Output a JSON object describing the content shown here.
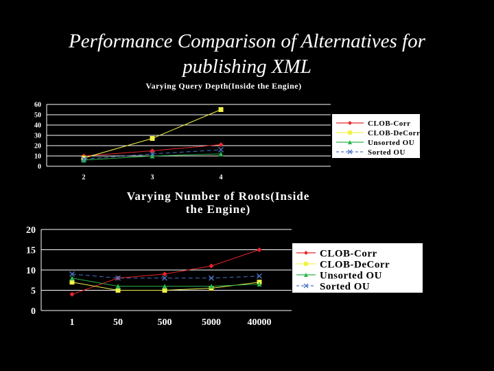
{
  "slide": {
    "title_line1": "Performance Comparison of Alternatives for",
    "title_line2": "publishing XML"
  },
  "colors": {
    "background": "#000000",
    "text": "#ffffff",
    "grid": "#ffffff",
    "legend_bg": "#ffffff",
    "clob_corr": "#e8262a",
    "clob_decorr": "#f2f24a",
    "unsorted_ou": "#2bb54a",
    "sorted_ou": "#4a74c4"
  },
  "chart_data": [
    {
      "type": "line",
      "title": "Varying Query Depth(Inside the Engine)",
      "x": [
        "2",
        "3",
        "4"
      ],
      "ylim": [
        0,
        60
      ],
      "yticks": [
        0,
        10,
        20,
        30,
        40,
        50,
        60
      ],
      "grid": true,
      "legend_position": "right",
      "series": [
        {
          "name": "CLOB-Corr",
          "color": "#e8262a",
          "marker": "diamond",
          "dash": "",
          "values": [
            10,
            15,
            21
          ]
        },
        {
          "name": "CLOB-DeCorr",
          "color": "#f2f24a",
          "marker": "square",
          "dash": "",
          "values": [
            8,
            27,
            55
          ]
        },
        {
          "name": "Unsorted OU",
          "color": "#2bb54a",
          "marker": "triangle",
          "dash": "",
          "values": [
            6,
            10,
            12
          ]
        },
        {
          "name": "Sorted OU",
          "color": "#4a74c4",
          "marker": "x",
          "dash": "6,4",
          "values": [
            7,
            12,
            16
          ]
        }
      ]
    },
    {
      "type": "line",
      "title": "Varying Number of Roots(Inside the Engine)",
      "x": [
        "1",
        "50",
        "500",
        "5000",
        "40000"
      ],
      "ylim": [
        0,
        20
      ],
      "yticks": [
        0,
        5,
        10,
        15,
        20
      ],
      "grid": true,
      "legend_position": "right",
      "series": [
        {
          "name": "CLOB-Corr",
          "color": "#e8262a",
          "marker": "diamond",
          "dash": "",
          "values": [
            4,
            8,
            9,
            11,
            15
          ]
        },
        {
          "name": "CLOB-DeCorr",
          "color": "#f2f24a",
          "marker": "square",
          "dash": "",
          "values": [
            7,
            5,
            5,
            5.5,
            7
          ]
        },
        {
          "name": "Unsorted OU",
          "color": "#2bb54a",
          "marker": "triangle",
          "dash": "",
          "values": [
            8,
            6,
            6,
            6,
            6.5
          ]
        },
        {
          "name": "Sorted OU",
          "color": "#4a74c4",
          "marker": "x",
          "dash": "6,4",
          "values": [
            9,
            8,
            8,
            8,
            8.5
          ]
        }
      ]
    }
  ]
}
